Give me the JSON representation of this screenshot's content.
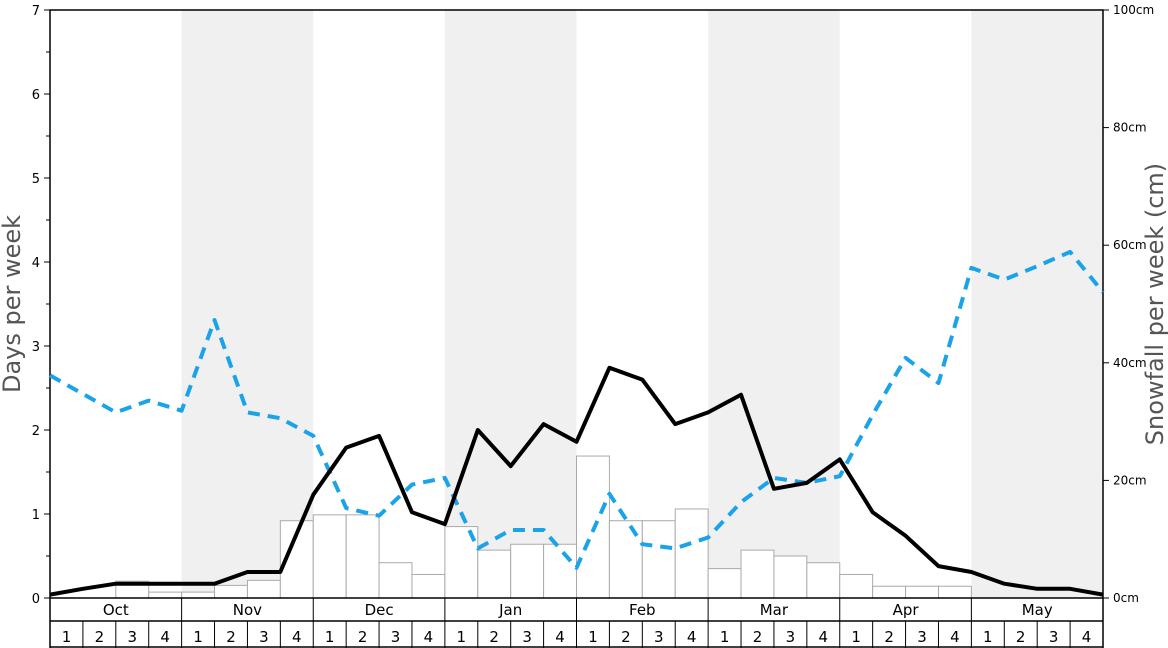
{
  "chart_data": {
    "type": "bar",
    "ylabel_left": "Days per week",
    "ylabel_right": "Snowfall per week (cm)",
    "ylim_left": [
      0,
      7
    ],
    "ylim_right": [
      0,
      100
    ],
    "left_ticks": [
      "0",
      "1",
      "2",
      "3",
      "4",
      "5",
      "6",
      "7"
    ],
    "right_ticks": [
      "0cm",
      "20cm",
      "40cm",
      "60cm",
      "80cm",
      "100cm"
    ],
    "months": [
      "Oct",
      "Nov",
      "Dec",
      "Jan",
      "Feb",
      "Mar",
      "Apr",
      "May"
    ],
    "weeks": [
      "1",
      "2",
      "3",
      "4"
    ],
    "grid": false,
    "colors": {
      "bar_fill": "#ffffff",
      "bar_stroke": "#aaaaaa",
      "shade": "#f0f0f0",
      "snowfall_line": "#000000",
      "days_line": "#1aa3e8"
    },
    "series": [
      {
        "type": "bar",
        "axis": "left",
        "values": [
          0.0,
          0.0,
          0.2,
          0.07,
          0.07,
          0.15,
          0.21,
          0.92,
          0.99,
          0.99,
          0.42,
          0.28,
          0.85,
          0.57,
          0.64,
          0.64,
          1.69,
          0.92,
          0.92,
          1.06,
          0.35,
          0.57,
          0.5,
          0.42,
          0.28,
          0.14,
          0.14,
          0.14,
          0.0,
          0.0,
          0.0,
          0.0
        ]
      },
      {
        "type": "line",
        "style": "solid",
        "axis": "left",
        "values": [
          0.04,
          0.11,
          0.17,
          0.17,
          0.17,
          0.17,
          0.31,
          0.31,
          1.23,
          1.79,
          1.93,
          1.02,
          0.88,
          2.0,
          1.57,
          2.07,
          1.86,
          2.74,
          2.6,
          2.07,
          2.21,
          2.42,
          1.3,
          1.37,
          1.65,
          1.02,
          0.74,
          0.38,
          0.31,
          0.17,
          0.11,
          0.11,
          0.04
        ]
      },
      {
        "type": "line",
        "style": "dashed",
        "axis": "left",
        "values": [
          2.65,
          2.43,
          2.21,
          2.35,
          2.23,
          3.31,
          2.21,
          2.14,
          1.93,
          1.07,
          0.98,
          1.35,
          1.43,
          0.59,
          0.81,
          0.81,
          0.36,
          1.24,
          0.64,
          0.59,
          0.72,
          1.14,
          1.43,
          1.37,
          1.45,
          2.18,
          2.86,
          2.56,
          3.93,
          3.79,
          3.95,
          4.12,
          3.64
        ]
      }
    ]
  }
}
